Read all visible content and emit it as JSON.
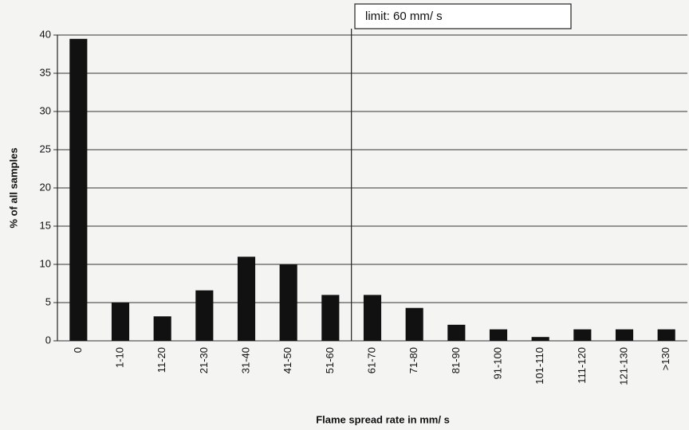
{
  "chart_data": {
    "type": "bar",
    "annotation": "limit: 60 mm/ s",
    "xlabel": "Flame spread rate in mm/ s",
    "ylabel": "% of all samples",
    "categories": [
      "0",
      "1-10",
      "11-20",
      "21-30",
      "31-40",
      "41-50",
      "51-60",
      "61-70",
      "71-80",
      "81-90",
      "91-100",
      "101-110",
      "111-120",
      "121-130",
      ">130"
    ],
    "values": [
      39.5,
      5,
      3.2,
      6.6,
      11,
      10,
      6,
      6,
      4.3,
      2.1,
      1.5,
      0.5,
      1.5,
      1.5,
      1.5
    ],
    "color": "#111111",
    "ylim": [
      0,
      40
    ],
    "yticks": [
      0,
      5,
      10,
      15,
      20,
      25,
      30,
      35,
      40
    ],
    "grid": true
  }
}
